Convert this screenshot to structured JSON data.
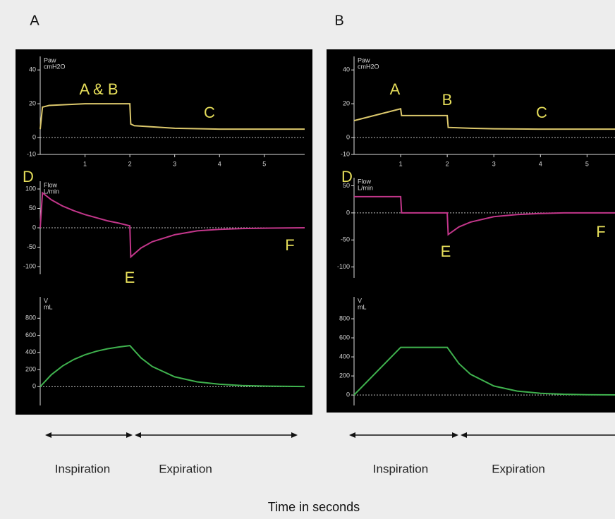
{
  "panels": [
    {
      "label": "A",
      "phases": [
        "Inspiration",
        "Expiration"
      ]
    },
    {
      "label": "B",
      "phases": [
        "Inspiration",
        "Expiration"
      ]
    }
  ],
  "x_axis_title": "Time in seconds",
  "chart_data": [
    {
      "type": "line",
      "ylabel": [
        "Paw",
        "cmH2O"
      ],
      "annotations": [
        "A & B",
        "C"
      ],
      "x": [
        0,
        0.05,
        0.2,
        1,
        2,
        2.02,
        2.1,
        3,
        4,
        5,
        5.9
      ],
      "series": [
        {
          "color": "#dcc86c",
          "values": [
            5,
            18,
            19,
            20,
            20,
            8,
            7,
            5.5,
            5,
            5,
            5
          ]
        }
      ],
      "xlim": [
        0,
        5.9
      ],
      "xticks": [
        1,
        2,
        3,
        4,
        5
      ],
      "ylim": [
        -10,
        48
      ],
      "yticks": [
        -10,
        0,
        20,
        40
      ]
    },
    {
      "type": "line",
      "ylabel": [
        "Flow",
        "L/min"
      ],
      "annotations": [
        "D",
        "E",
        "F"
      ],
      "x": [
        0,
        0.05,
        0.25,
        0.5,
        0.75,
        1,
        1.25,
        1.5,
        1.75,
        2,
        2.02,
        2.25,
        2.5,
        3,
        3.5,
        4,
        4.5,
        5,
        5.9
      ],
      "series": [
        {
          "color": "#c2368a",
          "values": [
            0,
            90,
            72,
            56,
            44,
            34,
            26,
            18,
            12,
            5,
            -75,
            -52,
            -36,
            -18,
            -8,
            -4,
            -2,
            -1,
            0
          ]
        }
      ],
      "xlim": [
        0,
        5.9
      ],
      "ylim": [
        -120,
        120
      ],
      "yticks": [
        -100,
        -50,
        0,
        50,
        100
      ]
    },
    {
      "type": "line",
      "ylabel": [
        "V",
        "mL"
      ],
      "annotations": [],
      "x": [
        0,
        0.25,
        0.5,
        0.75,
        1,
        1.25,
        1.5,
        1.75,
        2,
        2.25,
        2.5,
        3,
        3.5,
        4,
        4.5,
        5,
        5.9
      ],
      "series": [
        {
          "color": "#3fb24e",
          "values": [
            0,
            140,
            243,
            318,
            373,
            413,
            443,
            464,
            480,
            336,
            235,
            115,
            56,
            28,
            13,
            7,
            2
          ]
        }
      ],
      "xlim": [
        0,
        5.9
      ],
      "ylim": [
        -220,
        1050
      ],
      "yticks": [
        0,
        200,
        400,
        600,
        800
      ]
    },
    {
      "type": "line",
      "ylabel": [
        "Paw",
        "cmH2O"
      ],
      "annotations": [
        "A",
        "B",
        "C"
      ],
      "x": [
        0,
        1,
        1.02,
        2,
        2.02,
        2.5,
        3,
        4,
        5,
        5.6
      ],
      "series": [
        {
          "color": "#dcc86c",
          "values": [
            10,
            17,
            13,
            13,
            6,
            5.5,
            5.2,
            5,
            5,
            5
          ]
        }
      ],
      "xlim": [
        0,
        5.6
      ],
      "xticks": [
        1,
        2,
        3,
        4,
        5
      ],
      "ylim": [
        -10,
        48
      ],
      "yticks": [
        -10,
        0,
        20,
        40
      ]
    },
    {
      "type": "line",
      "ylabel": [
        "Flow",
        "L/min"
      ],
      "annotations": [
        "D",
        "E",
        "F"
      ],
      "x": [
        0,
        1,
        1.02,
        2,
        2.02,
        2.25,
        2.5,
        3,
        3.5,
        4,
        4.5,
        5,
        5.6
      ],
      "series": [
        {
          "color": "#c2368a",
          "values": [
            30,
            30,
            0,
            0,
            -40,
            -26,
            -17,
            -7,
            -3,
            -1,
            0,
            0,
            0
          ]
        }
      ],
      "xlim": [
        0,
        5.6
      ],
      "ylim": [
        -120,
        65
      ],
      "yticks": [
        -100,
        -50,
        0,
        50
      ]
    },
    {
      "type": "line",
      "ylabel": [
        "V",
        "mL"
      ],
      "annotations": [],
      "x": [
        0,
        1,
        2,
        2.25,
        2.5,
        3,
        3.5,
        4,
        4.5,
        5,
        5.6
      ],
      "series": [
        {
          "color": "#3fb24e",
          "values": [
            0,
            500,
            500,
            330,
            217,
            94,
            41,
            18,
            8,
            3,
            1
          ]
        }
      ],
      "xlim": [
        0,
        5.6
      ],
      "ylim": [
        -110,
        1030
      ],
      "yticks": [
        0,
        200,
        400,
        600,
        800
      ]
    }
  ]
}
